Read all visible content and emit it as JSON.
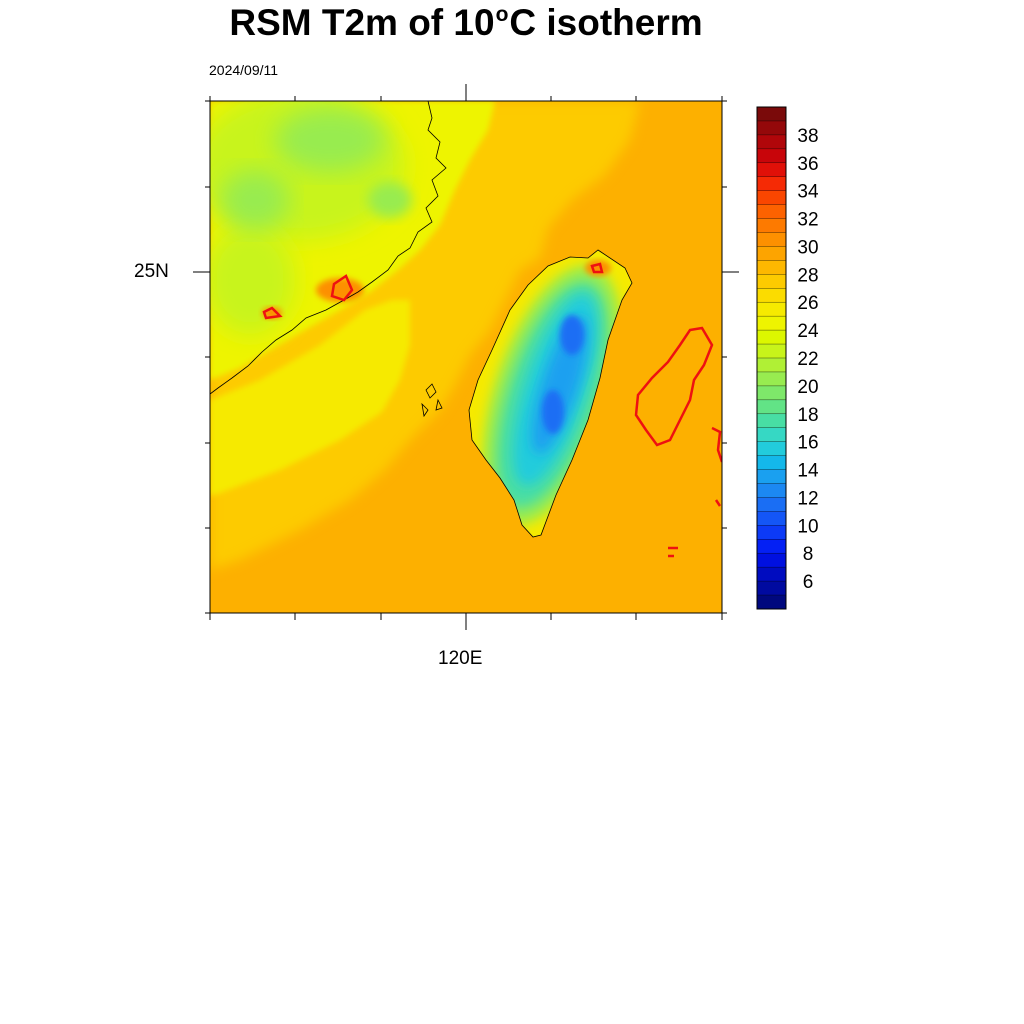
{
  "title": {
    "prefix": "RSM T2m of 10",
    "degree_symbol": "o",
    "suffix": "C isotherm"
  },
  "subtitle": "2024/09/11",
  "map": {
    "lat_label": "25N",
    "lon_label": "120E",
    "isotherm_value": 10,
    "isotherm_color": "#ee1111",
    "coastline_color": "#000000"
  },
  "colorbar": {
    "tick_labels": [
      "38",
      "36",
      "34",
      "32",
      "30",
      "28",
      "26",
      "24",
      "22",
      "20",
      "18",
      "16",
      "14",
      "12",
      "10",
      "8",
      "6"
    ],
    "colors_high_to_low": [
      "#7a0a0a",
      "#94080a",
      "#b0060a",
      "#c8050a",
      "#e01008",
      "#f52a05",
      "#fa4600",
      "#fd6200",
      "#fd7a00",
      "#fd9000",
      "#fda400",
      "#fdb800",
      "#fdcb00",
      "#fbdc00",
      "#f6ea00",
      "#eef400",
      "#dcf700",
      "#c8f41a",
      "#b0f035",
      "#98ec50",
      "#7ee86a",
      "#62e386",
      "#48dea4",
      "#36d8c4",
      "#22ccdc",
      "#14b8ea",
      "#1aa0f0",
      "#1c88f2",
      "#1a6ef4",
      "#1456f6",
      "#0c3af6",
      "#0420f4",
      "#0010e0",
      "#000cc0",
      "#000aa0",
      "#00087e"
    ]
  }
}
